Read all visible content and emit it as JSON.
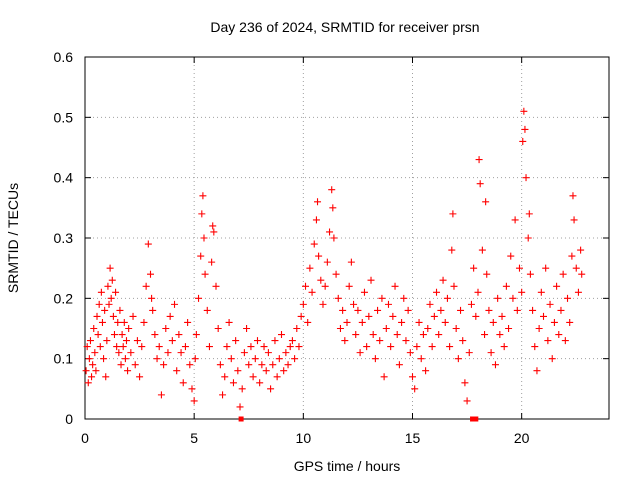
{
  "chart_data": {
    "type": "scatter",
    "title": "Day 236 of 2024, SRMTID for receiver prsn",
    "xlabel": "GPS time / hours",
    "ylabel": "SRMTID / TECUs",
    "xlim": [
      0,
      24
    ],
    "ylim": [
      0,
      0.6
    ],
    "xticks": [
      0,
      5,
      10,
      15,
      20
    ],
    "xtick_labels": [
      "0",
      "5",
      "10",
      "15",
      "20"
    ],
    "yticks": [
      0,
      0.1,
      0.2,
      0.3,
      0.4,
      0.5,
      0.6
    ],
    "ytick_labels": [
      "0",
      "0.1",
      "0.2",
      "0.3",
      "0.4",
      "0.5",
      "0.6"
    ],
    "grid": true,
    "marker": "plus",
    "color": "#ff0000",
    "series": [
      {
        "name": "SRMTID",
        "points": [
          [
            0.05,
            0.08
          ],
          [
            0.1,
            0.12
          ],
          [
            0.15,
            0.06
          ],
          [
            0.2,
            0.1
          ],
          [
            0.25,
            0.13
          ],
          [
            0.3,
            0.07
          ],
          [
            0.35,
            0.09
          ],
          [
            0.4,
            0.15
          ],
          [
            0.45,
            0.11
          ],
          [
            0.5,
            0.08
          ],
          [
            0.55,
            0.17
          ],
          [
            0.6,
            0.14
          ],
          [
            0.65,
            0.19
          ],
          [
            0.7,
            0.12
          ],
          [
            0.75,
            0.21
          ],
          [
            0.8,
            0.16
          ],
          [
            0.85,
            0.1
          ],
          [
            0.9,
            0.18
          ],
          [
            0.95,
            0.07
          ],
          [
            1.0,
            0.13
          ],
          [
            1.05,
            0.22
          ],
          [
            1.1,
            0.19
          ],
          [
            1.15,
            0.25
          ],
          [
            1.2,
            0.2
          ],
          [
            1.25,
            0.23
          ],
          [
            1.3,
            0.17
          ],
          [
            1.35,
            0.14
          ],
          [
            1.4,
            0.21
          ],
          [
            1.45,
            0.12
          ],
          [
            1.5,
            0.16
          ],
          [
            1.55,
            0.11
          ],
          [
            1.6,
            0.18
          ],
          [
            1.65,
            0.09
          ],
          [
            1.7,
            0.14
          ],
          [
            1.75,
            0.12
          ],
          [
            1.8,
            0.16
          ],
          [
            1.85,
            0.1
          ],
          [
            1.9,
            0.13
          ],
          [
            1.95,
            0.08
          ],
          [
            2.0,
            0.15
          ],
          [
            2.1,
            0.11
          ],
          [
            2.2,
            0.17
          ],
          [
            2.3,
            0.09
          ],
          [
            2.4,
            0.13
          ],
          [
            2.5,
            0.07
          ],
          [
            2.6,
            0.12
          ],
          [
            2.7,
            0.16
          ],
          [
            2.8,
            0.22
          ],
          [
            2.9,
            0.29
          ],
          [
            3.0,
            0.24
          ],
          [
            3.05,
            0.2
          ],
          [
            3.1,
            0.18
          ],
          [
            3.2,
            0.14
          ],
          [
            3.3,
            0.1
          ],
          [
            3.4,
            0.12
          ],
          [
            3.5,
            0.04
          ],
          [
            3.6,
            0.09
          ],
          [
            3.7,
            0.15
          ],
          [
            3.8,
            0.11
          ],
          [
            3.9,
            0.17
          ],
          [
            4.0,
            0.13
          ],
          [
            4.1,
            0.19
          ],
          [
            4.2,
            0.08
          ],
          [
            4.3,
            0.14
          ],
          [
            4.4,
            0.11
          ],
          [
            4.5,
            0.06
          ],
          [
            4.6,
            0.12
          ],
          [
            4.7,
            0.16
          ],
          [
            4.8,
            0.09
          ],
          [
            4.9,
            0.05
          ],
          [
            5.0,
            0.03
          ],
          [
            5.05,
            0.1
          ],
          [
            5.1,
            0.14
          ],
          [
            5.2,
            0.2
          ],
          [
            5.3,
            0.27
          ],
          [
            5.35,
            0.34
          ],
          [
            5.4,
            0.37
          ],
          [
            5.45,
            0.3
          ],
          [
            5.5,
            0.24
          ],
          [
            5.6,
            0.18
          ],
          [
            5.7,
            0.12
          ],
          [
            5.8,
            0.26
          ],
          [
            5.85,
            0.32
          ],
          [
            5.9,
            0.31
          ],
          [
            6.0,
            0.22
          ],
          [
            6.1,
            0.15
          ],
          [
            6.2,
            0.09
          ],
          [
            6.3,
            0.04
          ],
          [
            6.4,
            0.07
          ],
          [
            6.5,
            0.12
          ],
          [
            6.6,
            0.16
          ],
          [
            6.7,
            0.1
          ],
          [
            6.8,
            0.06
          ],
          [
            6.9,
            0.13
          ],
          [
            7.0,
            0.08
          ],
          [
            7.1,
            0.02
          ],
          [
            7.2,
            0.05
          ],
          [
            7.3,
            0.11
          ],
          [
            7.4,
            0.15
          ],
          [
            7.5,
            0.09
          ],
          [
            7.6,
            0.12
          ],
          [
            7.7,
            0.07
          ],
          [
            7.8,
            0.1
          ],
          [
            7.9,
            0.13
          ],
          [
            8.0,
            0.06
          ],
          [
            8.1,
            0.09
          ],
          [
            8.2,
            0.12
          ],
          [
            8.3,
            0.08
          ],
          [
            8.4,
            0.11
          ],
          [
            8.5,
            0.05
          ],
          [
            8.6,
            0.09
          ],
          [
            8.7,
            0.13
          ],
          [
            8.8,
            0.07
          ],
          [
            8.9,
            0.1
          ],
          [
            9.0,
            0.14
          ],
          [
            9.1,
            0.08
          ],
          [
            9.2,
            0.11
          ],
          [
            9.3,
            0.09
          ],
          [
            9.4,
            0.12
          ],
          [
            9.5,
            0.13
          ],
          [
            9.6,
            0.1
          ],
          [
            9.7,
            0.15
          ],
          [
            9.8,
            0.12
          ],
          [
            9.9,
            0.17
          ],
          [
            10.0,
            0.19
          ],
          [
            10.1,
            0.22
          ],
          [
            10.2,
            0.16
          ],
          [
            10.3,
            0.25
          ],
          [
            10.4,
            0.21
          ],
          [
            10.5,
            0.29
          ],
          [
            10.6,
            0.33
          ],
          [
            10.65,
            0.36
          ],
          [
            10.7,
            0.27
          ],
          [
            10.8,
            0.23
          ],
          [
            10.9,
            0.19
          ],
          [
            11.0,
            0.22
          ],
          [
            11.1,
            0.26
          ],
          [
            11.2,
            0.31
          ],
          [
            11.3,
            0.38
          ],
          [
            11.35,
            0.35
          ],
          [
            11.4,
            0.3
          ],
          [
            11.5,
            0.24
          ],
          [
            11.6,
            0.2
          ],
          [
            11.7,
            0.15
          ],
          [
            11.8,
            0.18
          ],
          [
            11.9,
            0.13
          ],
          [
            12.0,
            0.16
          ],
          [
            12.1,
            0.22
          ],
          [
            12.2,
            0.26
          ],
          [
            12.3,
            0.19
          ],
          [
            12.4,
            0.14
          ],
          [
            12.5,
            0.18
          ],
          [
            12.6,
            0.11
          ],
          [
            12.7,
            0.16
          ],
          [
            12.8,
            0.21
          ],
          [
            12.9,
            0.12
          ],
          [
            13.0,
            0.17
          ],
          [
            13.1,
            0.23
          ],
          [
            13.2,
            0.14
          ],
          [
            13.3,
            0.1
          ],
          [
            13.4,
            0.18
          ],
          [
            13.5,
            0.13
          ],
          [
            13.6,
            0.2
          ],
          [
            13.7,
            0.07
          ],
          [
            13.8,
            0.15
          ],
          [
            13.9,
            0.19
          ],
          [
            14.0,
            0.12
          ],
          [
            14.1,
            0.17
          ],
          [
            14.2,
            0.22
          ],
          [
            14.3,
            0.14
          ],
          [
            14.4,
            0.09
          ],
          [
            14.5,
            0.16
          ],
          [
            14.6,
            0.2
          ],
          [
            14.7,
            0.13
          ],
          [
            14.8,
            0.18
          ],
          [
            14.9,
            0.11
          ],
          [
            15.0,
            0.07
          ],
          [
            15.1,
            0.05
          ],
          [
            15.2,
            0.12
          ],
          [
            15.3,
            0.16
          ],
          [
            15.4,
            0.1
          ],
          [
            15.5,
            0.14
          ],
          [
            15.6,
            0.08
          ],
          [
            15.7,
            0.15
          ],
          [
            15.8,
            0.19
          ],
          [
            15.9,
            0.12
          ],
          [
            16.0,
            0.17
          ],
          [
            16.1,
            0.21
          ],
          [
            16.2,
            0.14
          ],
          [
            16.3,
            0.18
          ],
          [
            16.4,
            0.23
          ],
          [
            16.5,
            0.16
          ],
          [
            16.6,
            0.2
          ],
          [
            16.7,
            0.12
          ],
          [
            16.8,
            0.28
          ],
          [
            16.85,
            0.34
          ],
          [
            16.9,
            0.22
          ],
          [
            17.0,
            0.15
          ],
          [
            17.1,
            0.1
          ],
          [
            17.2,
            0.18
          ],
          [
            17.3,
            0.13
          ],
          [
            17.4,
            0.06
          ],
          [
            17.5,
            0.03
          ],
          [
            17.6,
            0.11
          ],
          [
            17.7,
            0.19
          ],
          [
            17.8,
            0.25
          ],
          [
            17.9,
            0.17
          ],
          [
            18.0,
            0.21
          ],
          [
            18.05,
            0.43
          ],
          [
            18.1,
            0.39
          ],
          [
            18.2,
            0.28
          ],
          [
            18.3,
            0.14
          ],
          [
            18.35,
            0.36
          ],
          [
            18.4,
            0.24
          ],
          [
            18.5,
            0.18
          ],
          [
            18.6,
            0.11
          ],
          [
            18.7,
            0.16
          ],
          [
            18.8,
            0.09
          ],
          [
            18.9,
            0.2
          ],
          [
            19.0,
            0.14
          ],
          [
            19.1,
            0.17
          ],
          [
            19.2,
            0.12
          ],
          [
            19.3,
            0.22
          ],
          [
            19.4,
            0.15
          ],
          [
            19.5,
            0.27
          ],
          [
            19.6,
            0.2
          ],
          [
            19.7,
            0.33
          ],
          [
            19.8,
            0.18
          ],
          [
            19.9,
            0.25
          ],
          [
            20.0,
            0.21
          ],
          [
            20.05,
            0.46
          ],
          [
            20.1,
            0.51
          ],
          [
            20.15,
            0.48
          ],
          [
            20.2,
            0.4
          ],
          [
            20.3,
            0.3
          ],
          [
            20.35,
            0.34
          ],
          [
            20.4,
            0.24
          ],
          [
            20.5,
            0.18
          ],
          [
            20.6,
            0.12
          ],
          [
            20.7,
            0.08
          ],
          [
            20.8,
            0.15
          ],
          [
            20.9,
            0.21
          ],
          [
            21.0,
            0.17
          ],
          [
            21.1,
            0.25
          ],
          [
            21.2,
            0.13
          ],
          [
            21.3,
            0.19
          ],
          [
            21.4,
            0.1
          ],
          [
            21.5,
            0.16
          ],
          [
            21.6,
            0.22
          ],
          [
            21.7,
            0.14
          ],
          [
            21.8,
            0.18
          ],
          [
            21.9,
            0.24
          ],
          [
            22.0,
            0.13
          ],
          [
            22.1,
            0.2
          ],
          [
            22.2,
            0.16
          ],
          [
            22.3,
            0.27
          ],
          [
            22.35,
            0.37
          ],
          [
            22.4,
            0.33
          ],
          [
            22.5,
            0.25
          ],
          [
            22.6,
            0.21
          ],
          [
            22.7,
            0.28
          ],
          [
            22.75,
            0.24
          ]
        ]
      }
    ],
    "axis_markers": [
      7.15,
      17.75,
      17.9
    ]
  }
}
